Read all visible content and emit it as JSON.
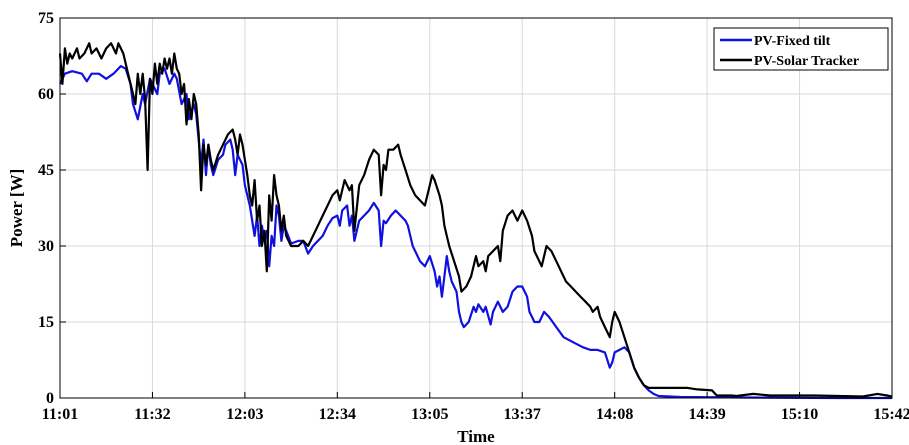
{
  "chart_data": {
    "type": "line",
    "xlabel": "Time",
    "ylabel": "Power [W]",
    "x_ticks": [
      "11:01",
      "11:32",
      "12:03",
      "12:34",
      "13:05",
      "13:37",
      "14:08",
      "14:39",
      "15:10",
      "15:42"
    ],
    "ylim": [
      0,
      75
    ],
    "y_ticks": [
      0,
      15,
      30,
      45,
      60,
      75
    ],
    "grid": true,
    "legend_position": "top-right",
    "x_unit": "minutes after 11:01",
    "series": [
      {
        "name": "PV-Fixed tilt",
        "color": "#1010e0",
        "points": [
          [
            0,
            62
          ],
          [
            2,
            64
          ],
          [
            5,
            64.5
          ],
          [
            9,
            64
          ],
          [
            11,
            62.5
          ],
          [
            13,
            64
          ],
          [
            16,
            64
          ],
          [
            19,
            63
          ],
          [
            22,
            64
          ],
          [
            25,
            65.5
          ],
          [
            27,
            65
          ],
          [
            29,
            62
          ],
          [
            30,
            58
          ],
          [
            32,
            55
          ],
          [
            34,
            60
          ],
          [
            35,
            58
          ],
          [
            37,
            63
          ],
          [
            38,
            62
          ],
          [
            40,
            60
          ],
          [
            41,
            64
          ],
          [
            43,
            65
          ],
          [
            45,
            62
          ],
          [
            47,
            64
          ],
          [
            48,
            63
          ],
          [
            50,
            58
          ],
          [
            52,
            60
          ],
          [
            53,
            55
          ],
          [
            55,
            58
          ],
          [
            56,
            56
          ],
          [
            58,
            46
          ],
          [
            59,
            51
          ],
          [
            60,
            44
          ],
          [
            61,
            50
          ],
          [
            62,
            46
          ],
          [
            63,
            44
          ],
          [
            65,
            47
          ],
          [
            67,
            48
          ],
          [
            68,
            50
          ],
          [
            70,
            51
          ],
          [
            71,
            49
          ],
          [
            72,
            44
          ],
          [
            73,
            48
          ],
          [
            75,
            46
          ],
          [
            76,
            42
          ],
          [
            78,
            38
          ],
          [
            79,
            35
          ],
          [
            80,
            32
          ],
          [
            81,
            36
          ],
          [
            82,
            30
          ],
          [
            83,
            34
          ],
          [
            84,
            31
          ],
          [
            85,
            33
          ],
          [
            86,
            26
          ],
          [
            87,
            32
          ],
          [
            88,
            30
          ],
          [
            89,
            38
          ],
          [
            90,
            36
          ],
          [
            91,
            31
          ],
          [
            92,
            34
          ],
          [
            93,
            33
          ],
          [
            95,
            30.5
          ],
          [
            98,
            31
          ],
          [
            100,
            31
          ],
          [
            102,
            28.5
          ],
          [
            104,
            30
          ],
          [
            106,
            31
          ],
          [
            108,
            32
          ],
          [
            110,
            34
          ],
          [
            112,
            35.5
          ],
          [
            114,
            36
          ],
          [
            115,
            34
          ],
          [
            116,
            37
          ],
          [
            118,
            38
          ],
          [
            119,
            34
          ],
          [
            120,
            36
          ],
          [
            121,
            31
          ],
          [
            123,
            35
          ],
          [
            125,
            36
          ],
          [
            127,
            37
          ],
          [
            129,
            38.5
          ],
          [
            131,
            37
          ],
          [
            132,
            30
          ],
          [
            133,
            35
          ],
          [
            134,
            34.5
          ],
          [
            136,
            36
          ],
          [
            138,
            37
          ],
          [
            140,
            36
          ],
          [
            142,
            35
          ],
          [
            143,
            34
          ],
          [
            145,
            30
          ],
          [
            147,
            28
          ],
          [
            148,
            27
          ],
          [
            150,
            26
          ],
          [
            152,
            28
          ],
          [
            154,
            25
          ],
          [
            155,
            22
          ],
          [
            156,
            24
          ],
          [
            157,
            20
          ],
          [
            158,
            24
          ],
          [
            159,
            28
          ],
          [
            160,
            25
          ],
          [
            161,
            23
          ],
          [
            163,
            21
          ],
          [
            164,
            17
          ],
          [
            165,
            15
          ],
          [
            166,
            14
          ],
          [
            168,
            15
          ],
          [
            170,
            18
          ],
          [
            171,
            17
          ],
          [
            172,
            18.5
          ],
          [
            174,
            17
          ],
          [
            175,
            18
          ],
          [
            177,
            14.5
          ],
          [
            178,
            17
          ],
          [
            180,
            19
          ],
          [
            182,
            17
          ],
          [
            184,
            18
          ],
          [
            186,
            21
          ],
          [
            188,
            22
          ],
          [
            190,
            22
          ],
          [
            192,
            20
          ],
          [
            193,
            17
          ],
          [
            194,
            16
          ],
          [
            195,
            15
          ],
          [
            197,
            15
          ],
          [
            199,
            17
          ],
          [
            201,
            16
          ],
          [
            204,
            14
          ],
          [
            207,
            12
          ],
          [
            211,
            11
          ],
          [
            215,
            10
          ],
          [
            218,
            9.5
          ],
          [
            221,
            9.5
          ],
          [
            224,
            9
          ],
          [
            226,
            6
          ],
          [
            227,
            7
          ],
          [
            228,
            9
          ],
          [
            230,
            9.5
          ],
          [
            232,
            10
          ],
          [
            234,
            9
          ],
          [
            236,
            6
          ],
          [
            238,
            4
          ],
          [
            240,
            2.5
          ],
          [
            242,
            1.5
          ],
          [
            244,
            0.8
          ],
          [
            246,
            0.4
          ],
          [
            255,
            0.2
          ],
          [
            280,
            0.1
          ],
          [
            320,
            0
          ],
          [
            342,
            0
          ]
        ]
      },
      {
        "name": "PV-Solar Tracker",
        "color": "#000000",
        "points": [
          [
            0,
            68
          ],
          [
            1,
            62
          ],
          [
            2,
            69
          ],
          [
            3,
            66
          ],
          [
            4,
            68
          ],
          [
            5,
            67
          ],
          [
            7,
            69
          ],
          [
            8,
            67
          ],
          [
            10,
            68
          ],
          [
            12,
            70
          ],
          [
            13,
            68
          ],
          [
            15,
            69
          ],
          [
            17,
            67
          ],
          [
            19,
            69
          ],
          [
            21,
            70
          ],
          [
            23,
            68
          ],
          [
            24,
            70
          ],
          [
            26,
            68
          ],
          [
            28,
            64
          ],
          [
            30,
            60
          ],
          [
            31,
            58
          ],
          [
            32,
            64
          ],
          [
            33,
            60
          ],
          [
            34,
            64
          ],
          [
            35,
            59
          ],
          [
            36,
            45
          ],
          [
            37,
            63
          ],
          [
            38,
            60
          ],
          [
            39,
            66
          ],
          [
            40,
            62
          ],
          [
            41,
            66
          ],
          [
            42,
            64
          ],
          [
            43,
            67
          ],
          [
            44,
            65
          ],
          [
            45,
            67
          ],
          [
            46,
            64
          ],
          [
            47,
            68
          ],
          [
            48,
            65
          ],
          [
            49,
            64
          ],
          [
            50,
            60
          ],
          [
            51,
            62
          ],
          [
            52,
            54
          ],
          [
            53,
            59
          ],
          [
            54,
            55
          ],
          [
            55,
            60
          ],
          [
            56,
            58
          ],
          [
            57,
            52
          ],
          [
            58,
            41
          ],
          [
            59,
            50
          ],
          [
            60,
            46
          ],
          [
            61,
            50
          ],
          [
            62,
            47
          ],
          [
            63,
            45
          ],
          [
            65,
            48
          ],
          [
            67,
            50
          ],
          [
            69,
            52
          ],
          [
            71,
            53
          ],
          [
            72,
            51
          ],
          [
            73,
            48
          ],
          [
            74,
            52
          ],
          [
            75,
            50
          ],
          [
            76,
            47
          ],
          [
            77,
            44
          ],
          [
            78,
            40
          ],
          [
            79,
            38
          ],
          [
            80,
            43
          ],
          [
            81,
            35
          ],
          [
            82,
            38
          ],
          [
            83,
            30
          ],
          [
            84,
            33
          ],
          [
            85,
            25
          ],
          [
            86,
            40
          ],
          [
            87,
            35
          ],
          [
            88,
            44
          ],
          [
            89,
            40
          ],
          [
            90,
            38
          ],
          [
            91,
            33
          ],
          [
            92,
            36
          ],
          [
            93,
            32
          ],
          [
            95,
            30
          ],
          [
            98,
            30
          ],
          [
            100,
            31
          ],
          [
            102,
            30
          ],
          [
            104,
            32
          ],
          [
            106,
            34
          ],
          [
            108,
            36
          ],
          [
            110,
            38
          ],
          [
            112,
            40
          ],
          [
            114,
            41
          ],
          [
            115,
            39
          ],
          [
            117,
            43
          ],
          [
            119,
            41
          ],
          [
            120,
            42
          ],
          [
            121,
            33
          ],
          [
            123,
            42
          ],
          [
            125,
            44
          ],
          [
            127,
            47
          ],
          [
            129,
            49
          ],
          [
            131,
            48
          ],
          [
            132,
            40
          ],
          [
            133,
            46
          ],
          [
            134,
            45
          ],
          [
            135,
            49
          ],
          [
            137,
            49
          ],
          [
            139,
            50
          ],
          [
            140,
            48
          ],
          [
            142,
            45
          ],
          [
            144,
            42
          ],
          [
            146,
            40
          ],
          [
            148,
            39
          ],
          [
            150,
            38
          ],
          [
            152,
            42
          ],
          [
            153,
            44
          ],
          [
            154,
            43
          ],
          [
            156,
            40
          ],
          [
            157,
            38
          ],
          [
            158,
            34
          ],
          [
            160,
            30
          ],
          [
            162,
            27
          ],
          [
            164,
            24
          ],
          [
            165,
            21
          ],
          [
            167,
            22
          ],
          [
            169,
            24
          ],
          [
            171,
            28
          ],
          [
            172,
            26
          ],
          [
            174,
            27
          ],
          [
            175,
            25
          ],
          [
            176,
            28
          ],
          [
            178,
            29
          ],
          [
            180,
            30
          ],
          [
            181,
            27
          ],
          [
            182,
            33
          ],
          [
            184,
            36
          ],
          [
            186,
            37
          ],
          [
            188,
            35
          ],
          [
            190,
            37
          ],
          [
            192,
            35
          ],
          [
            194,
            32
          ],
          [
            195,
            29
          ],
          [
            197,
            27
          ],
          [
            198,
            26
          ],
          [
            200,
            30
          ],
          [
            202,
            29
          ],
          [
            204,
            27
          ],
          [
            206,
            25
          ],
          [
            208,
            23
          ],
          [
            210,
            22
          ],
          [
            212,
            21
          ],
          [
            214,
            20
          ],
          [
            216,
            19
          ],
          [
            218,
            18
          ],
          [
            219,
            17
          ],
          [
            221,
            18
          ],
          [
            222,
            16
          ],
          [
            224,
            14
          ],
          [
            226,
            12
          ],
          [
            227,
            15
          ],
          [
            228,
            17
          ],
          [
            230,
            15
          ],
          [
            232,
            12
          ],
          [
            234,
            9
          ],
          [
            236,
            6
          ],
          [
            238,
            4
          ],
          [
            240,
            2.5
          ],
          [
            242,
            2
          ],
          [
            250,
            2
          ],
          [
            258,
            2
          ],
          [
            262,
            1.7
          ],
          [
            268,
            1.5
          ],
          [
            270,
            0.5
          ],
          [
            276,
            0.5
          ],
          [
            278,
            0.4
          ],
          [
            285,
            0.8
          ],
          [
            292,
            0.5
          ],
          [
            300,
            0.5
          ],
          [
            310,
            0.5
          ],
          [
            320,
            0.4
          ],
          [
            330,
            0.3
          ],
          [
            336,
            0.8
          ],
          [
            340,
            0.5
          ],
          [
            342,
            0.3
          ]
        ]
      }
    ]
  }
}
